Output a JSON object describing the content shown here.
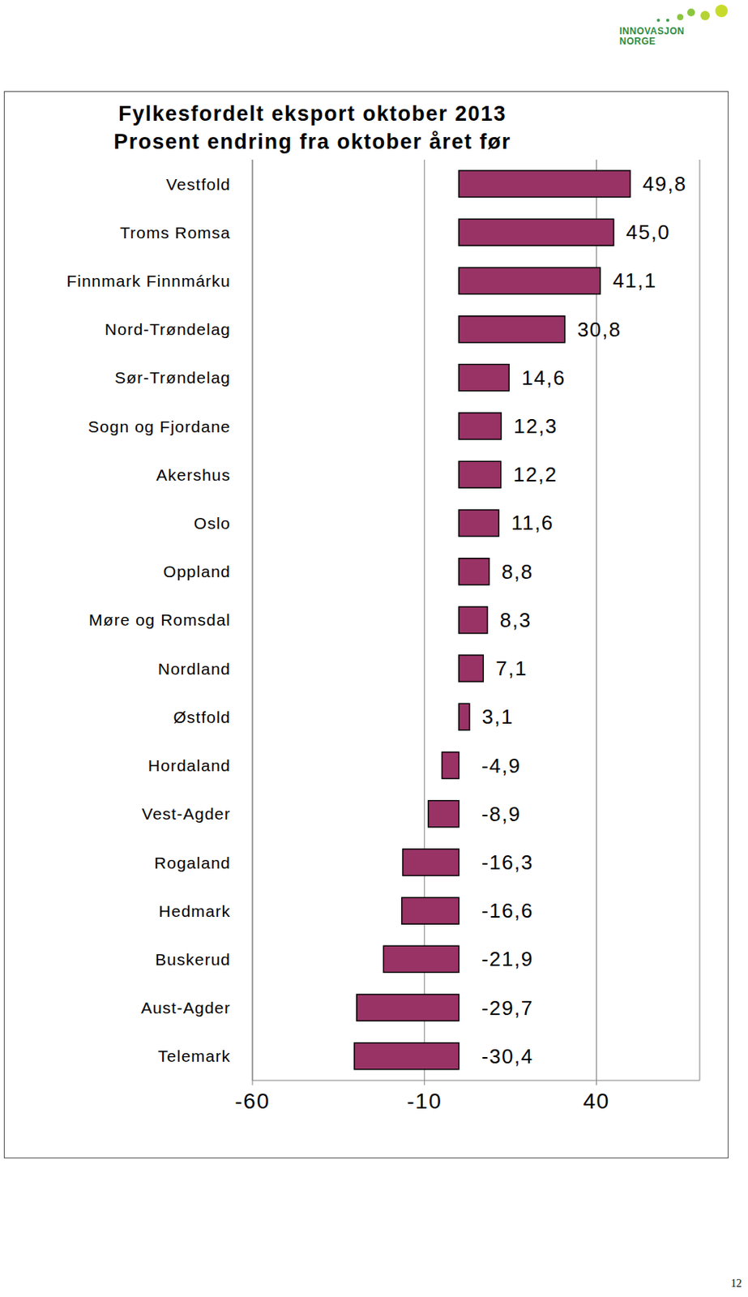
{
  "chart_data": {
    "type": "bar",
    "orientation": "horizontal",
    "title": "Fylkesfordelt eksport oktober 2013",
    "subtitle": "Prosent endring fra oktober året før",
    "categories": [
      "Vestfold",
      "Troms Romsa",
      "Finnmark Finnmárku",
      "Nord-Trøndelag",
      "Sør-Trøndelag",
      "Sogn og Fjordane",
      "Akershus",
      "Oslo",
      "Oppland",
      "Møre og Romsdal",
      "Nordland",
      "Østfold",
      "Hordaland",
      "Vest-Agder",
      "Rogaland",
      "Hedmark",
      "Buskerud",
      "Aust-Agder",
      "Telemark"
    ],
    "values": [
      49.8,
      45.0,
      41.1,
      30.8,
      14.6,
      12.3,
      12.2,
      11.6,
      8.8,
      8.3,
      7.1,
      3.1,
      -4.9,
      -8.9,
      -16.3,
      -16.6,
      -21.9,
      -29.7,
      -30.4
    ],
    "value_labels": [
      "49,8",
      "45,0",
      "41,1",
      "30,8",
      "14,6",
      "12,3",
      "12,2",
      "11,6",
      "8,8",
      "8,3",
      "7,1",
      "3,1",
      "-4,9",
      "-8,9",
      "-16,3",
      "-16,6",
      "-21,9",
      "-29,7",
      "-30,4"
    ],
    "data_labels": true,
    "color": "#993366",
    "xlim": [
      -60,
      70
    ],
    "xticks": [
      -60,
      -10,
      40
    ],
    "grid": true
  },
  "logo": {
    "lines": [
      "INNOVASJON",
      "NORGE"
    ]
  },
  "page": "12"
}
